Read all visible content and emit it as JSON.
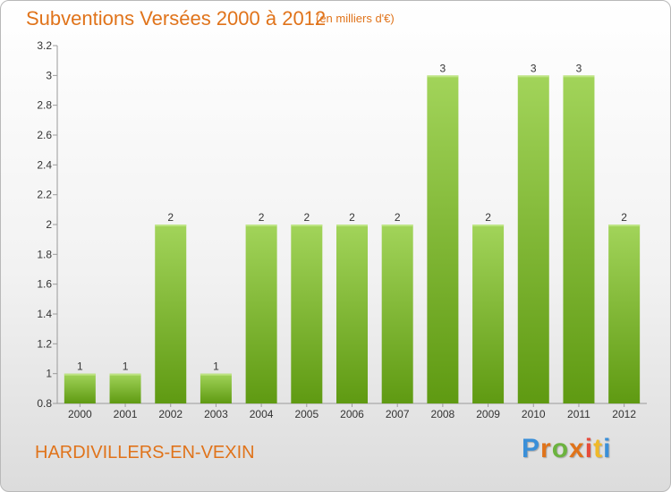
{
  "header": {
    "title": "Subventions Versées 2000 à 2012",
    "unit": "(en milliers d'€)"
  },
  "footer": {
    "commune": "HARDIVILLERS-EN-VEXIN",
    "logo": [
      "P",
      "r",
      "o",
      "x",
      "i",
      "t",
      "i"
    ],
    "logo_colors": [
      "#3a8fd8",
      "#e0731a",
      "#6cb33f",
      "#e0731a",
      "#e64b3c",
      "#f0b928",
      "#3a8fd8"
    ]
  },
  "colors": {
    "bar_light": "#a2d45a",
    "bar_dark": "#5f9a12",
    "axis": "#9a9a9a",
    "text": "#333333"
  },
  "chart_data": {
    "type": "bar",
    "title": "Subventions Versées 2000 à 2012",
    "categories": [
      "2000",
      "2001",
      "2002",
      "2003",
      "2004",
      "2005",
      "2006",
      "2007",
      "2008",
      "2009",
      "2010",
      "2011",
      "2012"
    ],
    "values": [
      1,
      1,
      2,
      1,
      2,
      2,
      2,
      2,
      3,
      2,
      3,
      3,
      2
    ],
    "bar_tops": [
      1,
      1,
      2,
      1,
      2,
      2,
      2,
      2,
      3,
      2,
      3,
      3,
      2
    ],
    "yticks": [
      "0.8",
      "1",
      "1.2",
      "1.4",
      "1.6",
      "1.8",
      "2",
      "2.2",
      "2.4",
      "2.6",
      "2.8",
      "3",
      "3.2"
    ],
    "ylim": [
      0.8,
      3.2
    ],
    "grid": false,
    "legend": "none"
  }
}
